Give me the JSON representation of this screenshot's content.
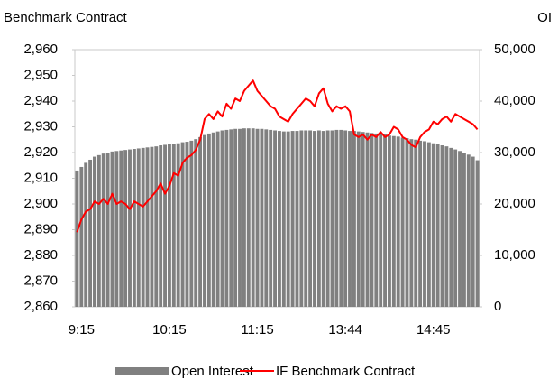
{
  "chart_data": {
    "type": "bar-line",
    "title": "Benchmark Contract",
    "y2label": "OI",
    "categories": [
      null,
      "9:15",
      null,
      null,
      null,
      null,
      null,
      null,
      null,
      null,
      null,
      null,
      null,
      null,
      null,
      null,
      null,
      null,
      null,
      null,
      null,
      "10:15",
      null,
      null,
      null,
      null,
      null,
      null,
      null,
      null,
      null,
      null,
      null,
      null,
      null,
      null,
      null,
      null,
      null,
      null,
      null,
      "11:15",
      null,
      null,
      null,
      null,
      null,
      null,
      null,
      null,
      null,
      null,
      null,
      null,
      null,
      null,
      null,
      null,
      null,
      null,
      null,
      "13:44",
      null,
      null,
      null,
      null,
      null,
      null,
      null,
      null,
      null,
      null,
      null,
      null,
      null,
      null,
      null,
      null,
      null,
      null,
      null,
      "14:45",
      null,
      null,
      null,
      null,
      null,
      null,
      null,
      null,
      null,
      null
    ],
    "series": [
      {
        "name": "Open Interest",
        "color": "#808080",
        "axis": "y2",
        "kind": "bar",
        "values": [
          26500,
          27200,
          28000,
          28600,
          29200,
          29500,
          29800,
          30000,
          30200,
          30300,
          30400,
          30500,
          30600,
          30700,
          30800,
          30900,
          31000,
          31100,
          31200,
          31400,
          31500,
          31600,
          31700,
          31800,
          32000,
          32100,
          32300,
          32600,
          33000,
          33400,
          33700,
          33900,
          34100,
          34300,
          34400,
          34500,
          34600,
          34600,
          34700,
          34700,
          34700,
          34600,
          34600,
          34500,
          34400,
          34300,
          34200,
          34100,
          34100,
          34200,
          34200,
          34300,
          34300,
          34300,
          34200,
          34300,
          34200,
          34300,
          34300,
          34400,
          34400,
          34300,
          34200,
          34200,
          34100,
          34000,
          33900,
          33800,
          33700,
          33600,
          33500,
          33300,
          33200,
          33100,
          32900,
          32800,
          32600,
          32500,
          32300,
          32200,
          32000,
          31800,
          31600,
          31400,
          31200,
          30900,
          30600,
          30300,
          30000,
          29600,
          29200,
          28500
        ]
      },
      {
        "name": "IF Benchmark Contract",
        "color": "#ff0000",
        "axis": "y",
        "kind": "line",
        "values": [
          2889,
          2894,
          2897,
          2898,
          2901,
          2900,
          2902,
          2900,
          2904,
          2900,
          2901,
          2900,
          2898,
          2901,
          2900,
          2899,
          2901,
          2903,
          2905,
          2908,
          2904,
          2907,
          2912,
          2911,
          2916,
          2918,
          2919,
          2921,
          2925,
          2933,
          2935,
          2933,
          2936,
          2934,
          2939,
          2937,
          2941,
          2940,
          2944,
          2946,
          2948,
          2944,
          2942,
          2940,
          2938,
          2937,
          2934,
          2933,
          2932,
          2935,
          2937,
          2939,
          2941,
          2940,
          2938,
          2943,
          2945,
          2939,
          2936,
          2938,
          2937,
          2938,
          2936,
          2927,
          2926,
          2927,
          2925,
          2927,
          2926,
          2928,
          2926,
          2927,
          2930,
          2929,
          2926,
          2925,
          2923,
          2922,
          2926,
          2928,
          2929,
          2932,
          2931,
          2933,
          2934,
          2932,
          2935,
          2934,
          2933,
          2932,
          2931,
          2929
        ]
      }
    ],
    "ylim": [
      2860,
      2960
    ],
    "yticks": [
      {
        "value": 2860,
        "label": "2,860"
      },
      {
        "value": 2870,
        "label": "2,870"
      },
      {
        "value": 2880,
        "label": "2,880"
      },
      {
        "value": 2890,
        "label": "2,890"
      },
      {
        "value": 2900,
        "label": "2,900"
      },
      {
        "value": 2910,
        "label": "2,910"
      },
      {
        "value": 2920,
        "label": "2,920"
      },
      {
        "value": 2930,
        "label": "2,930"
      },
      {
        "value": 2940,
        "label": "2,940"
      },
      {
        "value": 2950,
        "label": "2,950"
      },
      {
        "value": 2960,
        "label": "2,960"
      }
    ],
    "y2lim": [
      0,
      50000
    ],
    "y2ticks": [
      0,
      {
        "value": 10000,
        "label": "10,000"
      },
      {
        "value": 20000,
        "label": "20,000"
      },
      {
        "value": 30000,
        "label": "30,000"
      },
      {
        "value": 40000,
        "label": "40,000"
      },
      {
        "value": 50000,
        "label": "50,000"
      }
    ],
    "legend": "bottom"
  }
}
